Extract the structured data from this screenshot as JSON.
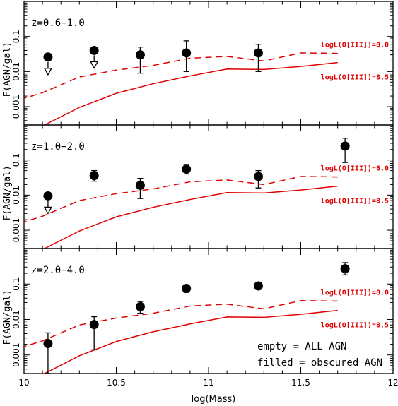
{
  "chart_data": {
    "type": "scatter",
    "xlabel": "log(Mass)",
    "ylabel": "F(AGN/gal)",
    "xlim": [
      10.0,
      12.0
    ],
    "ylim": [
      0.0003,
      1.0
    ],
    "yscale": "log",
    "x_ticks": [
      "10",
      "10.5",
      "11",
      "11.5",
      "12"
    ],
    "y_ticks": [
      "0.001",
      "0.01",
      "0.1"
    ],
    "legend": {
      "line1": "empty = ALL AGN",
      "line2": "filled = obscured AGN"
    },
    "model_curves": [
      {
        "name": "logL(O[III])=8.0",
        "style": "dashed",
        "color": "#e00000",
        "x": [
          9.98,
          10.1,
          10.3,
          10.5,
          10.7,
          10.9,
          11.1,
          11.3,
          11.5,
          11.7
        ],
        "y": [
          0.0016,
          0.0025,
          0.007,
          0.011,
          0.015,
          0.024,
          0.027,
          0.02,
          0.034,
          0.033
        ]
      },
      {
        "name": "logL(O[III])=8.5",
        "style": "solid",
        "color": "#e00000",
        "x": [
          10.1,
          10.3,
          10.5,
          10.7,
          10.9,
          11.1,
          11.3,
          11.5,
          11.7
        ],
        "y": [
          0.00028,
          0.00095,
          0.0024,
          0.0045,
          0.0075,
          0.0118,
          0.0115,
          0.014,
          0.018
        ]
      }
    ],
    "panels": [
      {
        "label": "z=0.6−1.0",
        "points": [
          {
            "x": 10.13,
            "y": 0.026,
            "upper_limit": true,
            "err_lo": null,
            "err_hi": null
          },
          {
            "x": 10.38,
            "y": 0.04,
            "upper_limit": true,
            "err_lo": null,
            "err_hi": null
          },
          {
            "x": 10.63,
            "y": 0.03,
            "upper_limit": false,
            "err_lo": 0.009,
            "err_hi": 0.05
          },
          {
            "x": 10.88,
            "y": 0.034,
            "upper_limit": false,
            "err_lo": 0.01,
            "err_hi": 0.075
          },
          {
            "x": 11.27,
            "y": 0.034,
            "upper_limit": false,
            "err_lo": 0.01,
            "err_hi": 0.06
          }
        ]
      },
      {
        "label": "z=1.0−2.0",
        "points": [
          {
            "x": 10.13,
            "y": 0.0095,
            "upper_limit": true,
            "err_lo": null,
            "err_hi": null
          },
          {
            "x": 10.38,
            "y": 0.036,
            "upper_limit": false,
            "err_lo": 0.025,
            "err_hi": 0.05
          },
          {
            "x": 10.63,
            "y": 0.019,
            "upper_limit": false,
            "err_lo": 0.008,
            "err_hi": 0.03
          },
          {
            "x": 10.88,
            "y": 0.055,
            "upper_limit": false,
            "err_lo": 0.04,
            "err_hi": 0.075
          },
          {
            "x": 11.27,
            "y": 0.034,
            "upper_limit": false,
            "err_lo": 0.016,
            "err_hi": 0.05
          },
          {
            "x": 11.74,
            "y": 0.25,
            "upper_limit": false,
            "err_lo": 0.085,
            "err_hi": 0.42
          }
        ]
      },
      {
        "label": "z=2.0−4.0",
        "points": [
          {
            "x": 10.13,
            "y": 0.0021,
            "upper_limit": false,
            "err_lo": 0.0003,
            "err_hi": 0.0042
          },
          {
            "x": 10.38,
            "y": 0.0072,
            "upper_limit": false,
            "err_lo": 0.0014,
            "err_hi": 0.012
          },
          {
            "x": 10.63,
            "y": 0.023,
            "upper_limit": false,
            "err_lo": 0.015,
            "err_hi": 0.032
          },
          {
            "x": 10.88,
            "y": 0.075,
            "upper_limit": false,
            "err_lo": 0.058,
            "err_hi": 0.095
          },
          {
            "x": 11.27,
            "y": 0.088,
            "upper_limit": false,
            "err_lo": 0.07,
            "err_hi": 0.11
          },
          {
            "x": 11.74,
            "y": 0.27,
            "upper_limit": false,
            "err_lo": 0.18,
            "err_hi": 0.4
          }
        ]
      }
    ]
  }
}
